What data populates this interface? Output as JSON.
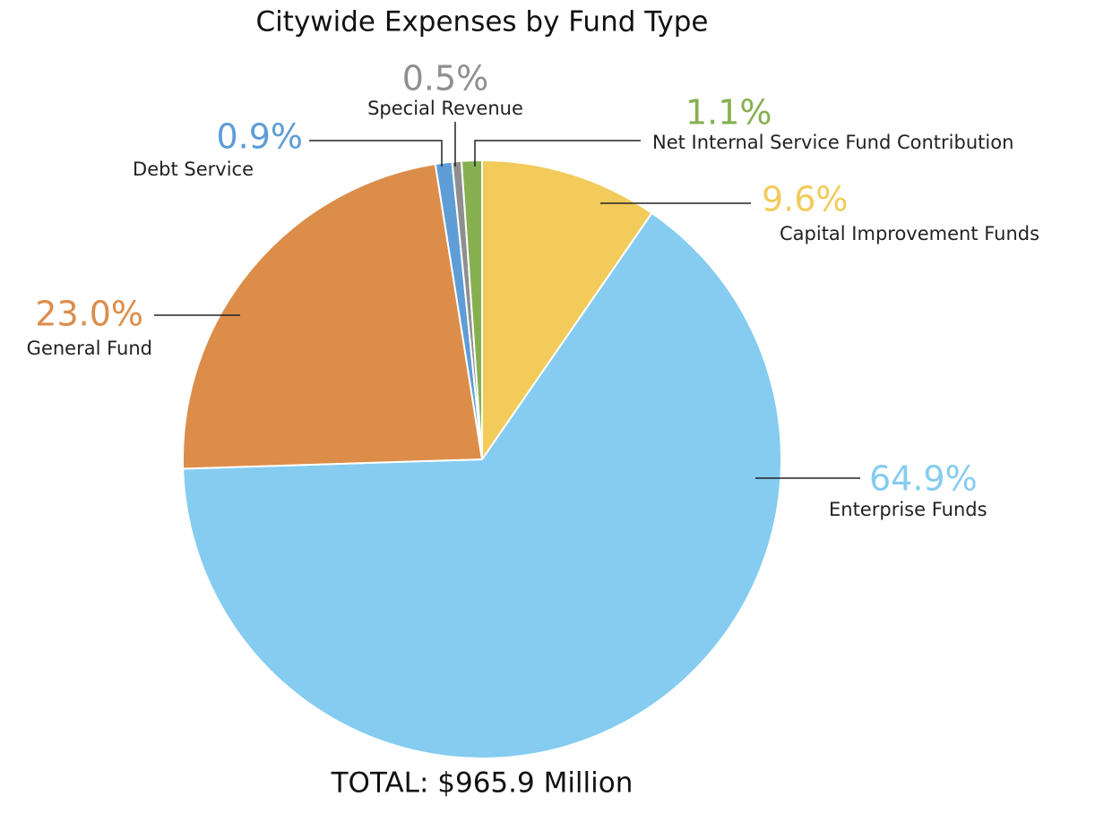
{
  "chart_data": {
    "type": "pie",
    "title": "Citywide Expenses by Fund Type",
    "footer": "TOTAL: $965.9 Million",
    "categories": [
      "Capital Improvement Funds",
      "Enterprise Funds",
      "General Fund",
      "Debt Service",
      "Special Revenue",
      "Net Internal Service Fund Contribution"
    ],
    "values": [
      9.6,
      64.9,
      23.0,
      0.9,
      0.5,
      1.1
    ],
    "value_labels": [
      "9.6%",
      "64.9%",
      "23.0%",
      "0.9%",
      "0.5%",
      "1.1%"
    ],
    "colors": [
      "#f2cb5a",
      "#85ccf0",
      "#dc8d4a",
      "#5e9dd6",
      "#8f8f8f",
      "#86b050"
    ]
  }
}
